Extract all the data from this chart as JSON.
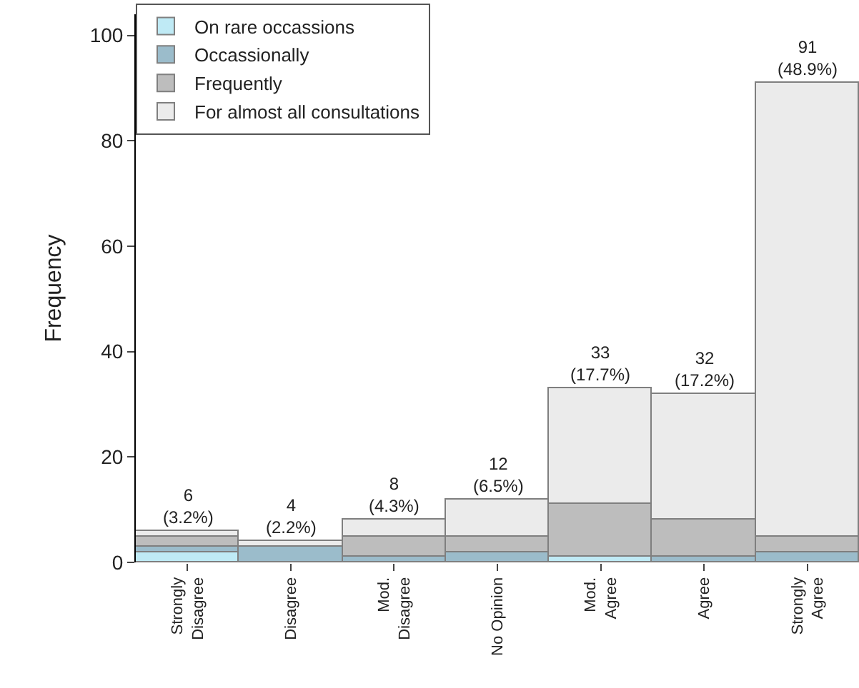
{
  "chart_data": {
    "type": "bar",
    "stacked": true,
    "ylabel": "Frequency",
    "categories": [
      "Strongly\nDisagree",
      "Disagree",
      "Mod.\nDisagree",
      "No Opinion",
      "Mod.\nAgree",
      "Agree",
      "Strongly\nAgree"
    ],
    "series": [
      {
        "name": "On rare occassions",
        "color": "#bfeaf5",
        "values": [
          2,
          0,
          0,
          0,
          1,
          0,
          0
        ]
      },
      {
        "name": "Occassionally",
        "color": "#9bbccb",
        "values": [
          1,
          3,
          1,
          2,
          0,
          1,
          2
        ]
      },
      {
        "name": "Frequently",
        "color": "#bdbdbd",
        "values": [
          2,
          0,
          4,
          3,
          10,
          7,
          3
        ]
      },
      {
        "name": "For almost all consultations",
        "color": "#ebebeb",
        "values": [
          1,
          1,
          3,
          7,
          22,
          24,
          86
        ]
      }
    ],
    "totals": [
      "6\n(3.2%)",
      "4\n(2.2%)",
      "8\n(4.3%)",
      "12\n(6.5%)",
      "33\n(17.7%)",
      "32\n(17.2%)",
      "91\n(48.9%)"
    ],
    "ylim": [
      0,
      104
    ],
    "yticks": [
      0,
      20,
      40,
      60,
      80,
      100
    ],
    "legend": "top left"
  }
}
